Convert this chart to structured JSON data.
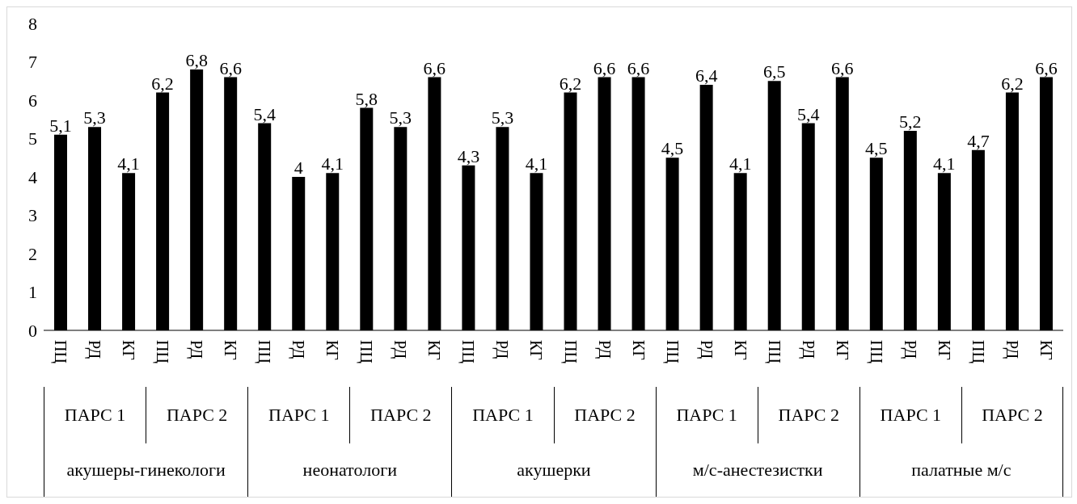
{
  "chart_data": {
    "type": "bar",
    "categories": [
      "ПЦ",
      "РД",
      "КГ",
      "ПЦ",
      "РД",
      "КГ",
      "ПЦ",
      "РД",
      "КГ",
      "ПЦ",
      "РД",
      "КГ",
      "ПЦ",
      "РД",
      "КГ",
      "ПЦ",
      "РД",
      "КГ",
      "ПЦ",
      "РД",
      "КГ",
      "ПЦ",
      "РД",
      "КГ",
      "ПЦ",
      "РД",
      "КГ",
      "ПЦ",
      "РД",
      "КГ"
    ],
    "values": [
      5.1,
      5.3,
      4.1,
      6.2,
      6.8,
      6.6,
      5.4,
      4,
      4.1,
      5.8,
      5.3,
      6.6,
      4.3,
      5.3,
      4.1,
      6.2,
      6.6,
      6.6,
      4.5,
      6.4,
      4.1,
      6.5,
      5.4,
      6.6,
      4.5,
      5.2,
      4.1,
      4.7,
      6.2,
      6.6
    ],
    "value_labels": [
      "5,1",
      "5,3",
      "4,1",
      "6,2",
      "6,8",
      "6,6",
      "5,4",
      "4",
      "4,1",
      "5,8",
      "5,3",
      "6,6",
      "4,3",
      "5,3",
      "4,1",
      "6,2",
      "6,6",
      "6,6",
      "4,5",
      "6,4",
      "4,1",
      "6,5",
      "5,4",
      "6,6",
      "4,5",
      "5,2",
      "4,1",
      "4,7",
      "6,2",
      "6,6"
    ],
    "color": "#000000",
    "ylim": [
      0,
      8
    ],
    "yticks": [
      0,
      1,
      2,
      3,
      4,
      5,
      6,
      7,
      8
    ],
    "annotations": [
      "ПАРС 1",
      "ПАРС 2",
      "ПАРС 1",
      "ПАРС 2",
      "ПАРС 1",
      "ПАРС 2",
      "ПАРС 1",
      "ПАРС 2",
      "ПАРС 1",
      "ПАРС 2",
      "акушеры-гинекологи",
      "неонатологи",
      "акушерки",
      "м/с-анестезистки",
      "палатные м/с"
    ]
  }
}
